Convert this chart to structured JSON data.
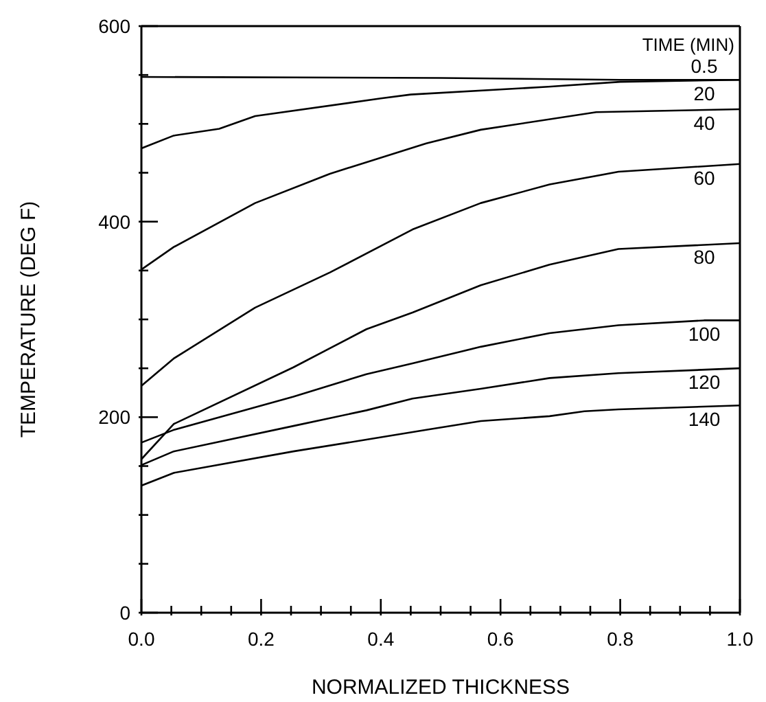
{
  "chart_data": {
    "type": "line",
    "xlabel": "NORMALIZED THICKNESS",
    "ylabel": "TEMPERATURE (DEG F)",
    "legend_title": "TIME (MIN)",
    "xlim": [
      0,
      1
    ],
    "ylim": [
      0,
      600
    ],
    "xticks": [
      {
        "value": 0,
        "label": "0.0"
      },
      {
        "value": 0.05,
        "label": null
      },
      {
        "value": 0.1,
        "label": null
      },
      {
        "value": 0.15,
        "label": null
      },
      {
        "value": 0.2,
        "label": "0.2"
      },
      {
        "value": 0.25,
        "label": null
      },
      {
        "value": 0.3,
        "label": null
      },
      {
        "value": 0.35,
        "label": null
      },
      {
        "value": 0.4,
        "label": "0.4"
      },
      {
        "value": 0.45,
        "label": null
      },
      {
        "value": 0.5,
        "label": null
      },
      {
        "value": 0.55,
        "label": null
      },
      {
        "value": 0.6,
        "label": "0.6"
      },
      {
        "value": 0.65,
        "label": null
      },
      {
        "value": 0.7,
        "label": null
      },
      {
        "value": 0.75,
        "label": null
      },
      {
        "value": 0.8,
        "label": "0.8"
      },
      {
        "value": 0.85,
        "label": null
      },
      {
        "value": 0.9,
        "label": null
      },
      {
        "value": 0.95,
        "label": null
      },
      {
        "value": 1,
        "label": "1.0"
      }
    ],
    "yticks": [
      0,
      {
        "value": 50,
        "label": null
      },
      {
        "value": 100,
        "label": null
      },
      {
        "value": 150,
        "label": null
      },
      200,
      {
        "value": 250,
        "label": null
      },
      {
        "value": 300,
        "label": null
      },
      {
        "value": 350,
        "label": null
      },
      400,
      {
        "value": 450,
        "label": null
      },
      {
        "value": 500,
        "label": null
      },
      {
        "value": 550,
        "label": null
      },
      600
    ],
    "marker": "none",
    "line_style": "solid",
    "series": [
      {
        "name": "0.5",
        "color": "#000000",
        "x": [
          0,
          0.5,
          0.8,
          1
        ],
        "values": [
          548,
          547,
          545,
          545
        ]
      },
      {
        "name": "20",
        "color": "#000000",
        "x": [
          0,
          0.054,
          0.13,
          0.19,
          0.4,
          0.45,
          0.68,
          0.8,
          1
        ],
        "values": [
          475,
          488,
          495,
          508,
          526,
          530,
          538,
          543,
          545
        ]
      },
      {
        "name": "40",
        "color": "#000000",
        "x": [
          0,
          0.054,
          0.19,
          0.315,
          0.476,
          0.567,
          0.76,
          1
        ],
        "values": [
          351,
          374,
          419,
          449,
          480,
          494,
          512,
          515
        ]
      },
      {
        "name": "60",
        "color": "#000000",
        "x": [
          0,
          0.054,
          0.19,
          0.315,
          0.453,
          0.567,
          0.682,
          0.797,
          1
        ],
        "values": [
          232,
          260,
          312,
          348,
          392,
          419,
          438,
          451,
          459
        ]
      },
      {
        "name": "80",
        "color": "#000000",
        "x": [
          0,
          0.054,
          0.254,
          0.376,
          0.453,
          0.567,
          0.682,
          0.797,
          1
        ],
        "values": [
          157,
          193,
          251,
          290,
          307,
          335,
          356,
          372,
          378
        ]
      },
      {
        "name": "100",
        "color": "#000000",
        "x": [
          0,
          0.054,
          0.254,
          0.376,
          0.453,
          0.567,
          0.682,
          0.797,
          0.94,
          1
        ],
        "values": [
          174,
          187,
          221,
          244,
          255,
          272,
          286,
          294,
          299,
          299
        ]
      },
      {
        "name": "120",
        "color": "#000000",
        "x": [
          0,
          0.054,
          0.254,
          0.376,
          0.453,
          0.567,
          0.682,
          0.797,
          1
        ],
        "values": [
          151,
          165,
          191,
          207,
          219,
          229,
          240,
          245,
          250
        ]
      },
      {
        "name": "140",
        "color": "#000000",
        "x": [
          0,
          0.054,
          0.254,
          0.376,
          0.476,
          0.567,
          0.682,
          0.74,
          0.797,
          1
        ],
        "values": [
          130,
          143,
          165,
          177,
          187,
          196,
          201,
          206,
          208,
          212
        ]
      }
    ]
  }
}
